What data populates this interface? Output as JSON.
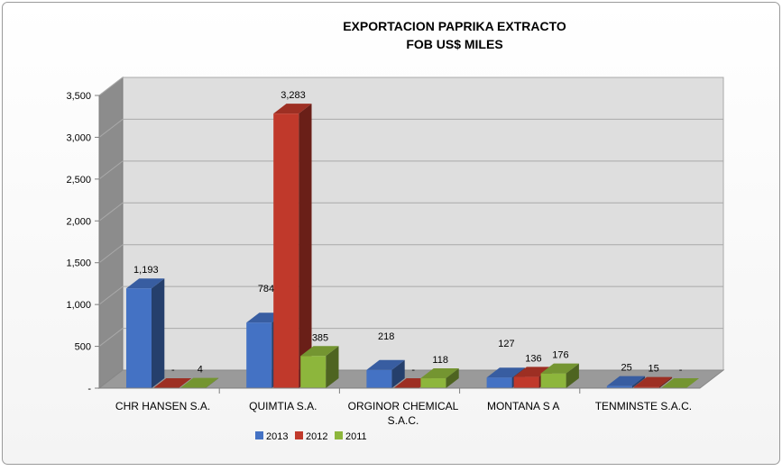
{
  "chart_data": {
    "type": "bar",
    "title": "EXPORTACION PAPRIKA EXTRACTO",
    "subtitle": "FOB US$ MILES",
    "xlabel": "",
    "ylabel": "",
    "ylim": [
      0,
      3500
    ],
    "yticks": [
      0,
      500,
      1000,
      1500,
      2000,
      2500,
      3000,
      3500
    ],
    "ytick_labels": [
      "-",
      "500",
      "1,000",
      "1,500",
      "2,000",
      "2,500",
      "3,000",
      "3,500"
    ],
    "categories": [
      [
        "CHR HANSEN S.A."
      ],
      [
        "QUIMTIA S.A."
      ],
      [
        "ORGINOR CHEMICAL",
        "S.A.C."
      ],
      [
        "MONTANA S A"
      ],
      [
        "TENMINSTE S.A.C."
      ]
    ],
    "series": [
      {
        "name": "2013",
        "color": "#4472c4",
        "values": [
          1193,
          784,
          218,
          127,
          25
        ],
        "labels": [
          "1,193",
          "784",
          "218",
          "127",
          "25"
        ]
      },
      {
        "name": "2012",
        "color": "#c0392b",
        "values": [
          0,
          3283,
          0,
          136,
          15
        ],
        "labels": [
          "-",
          "3,283",
          "-",
          "136",
          "15"
        ]
      },
      {
        "name": "2011",
        "color": "#8db63c",
        "values": [
          4,
          385,
          118,
          176,
          0
        ],
        "labels": [
          "4",
          "385",
          "118",
          "176",
          "-"
        ]
      }
    ],
    "grid": true,
    "legend_position": "bottom",
    "style": "3d"
  }
}
